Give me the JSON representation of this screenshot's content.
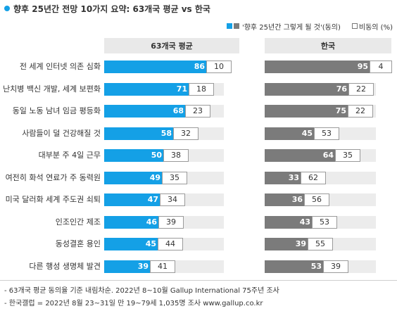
{
  "title": "향후 25년간 전망 10가지 요약: 63개국 평균 vs 한국",
  "colors": {
    "accent": "#14a0e6",
    "korea": "#7b7b7b",
    "track": "#ececec"
  },
  "legend": {
    "agree": "'향후 25년간 그렇게 될 것'(동의)",
    "disagree": "비동의 (%)"
  },
  "footnotes": [
    "- 63개국 평균 동의율 기준 내림차순. 2022년 8~10월 Gallup International 75주년 조사",
    "- 한국갤럽 = 2022년 8월 23~31일 만 19~79세 1,035명 조사 www.gallup.co.kr"
  ],
  "chart_data": {
    "type": "bar",
    "orientation": "horizontal",
    "title": "향후 25년간 전망 10가지 요약: 63개국 평균 vs 한국",
    "categories": [
      "전 세계 인터넷 의존 심화",
      "난치병 백신 개발, 세계 보편화",
      "동일 노동 남녀 임금 평등화",
      "사람들이 덜 건강해질 것",
      "대부분 주 4일 근무",
      "여전히 화석 연료가 주 동력원",
      "미국 달러화 세계 주도권 쇠퇴",
      "인조인간 제조",
      "동성결혼 용인",
      "다른 행성 생명체 발견"
    ],
    "panels": [
      {
        "name": "63개국 평균",
        "agree": [
          86,
          71,
          68,
          58,
          50,
          49,
          47,
          46,
          45,
          39
        ],
        "disagree": [
          10,
          18,
          23,
          32,
          38,
          35,
          34,
          39,
          44,
          41
        ]
      },
      {
        "name": "한국",
        "agree": [
          95,
          76,
          75,
          45,
          64,
          33,
          36,
          43,
          39,
          53
        ],
        "disagree": [
          4,
          22,
          22,
          53,
          35,
          62,
          56,
          53,
          55,
          39
        ]
      }
    ],
    "xlim": [
      0,
      100
    ],
    "legend_position": "top-right",
    "grid": false
  }
}
